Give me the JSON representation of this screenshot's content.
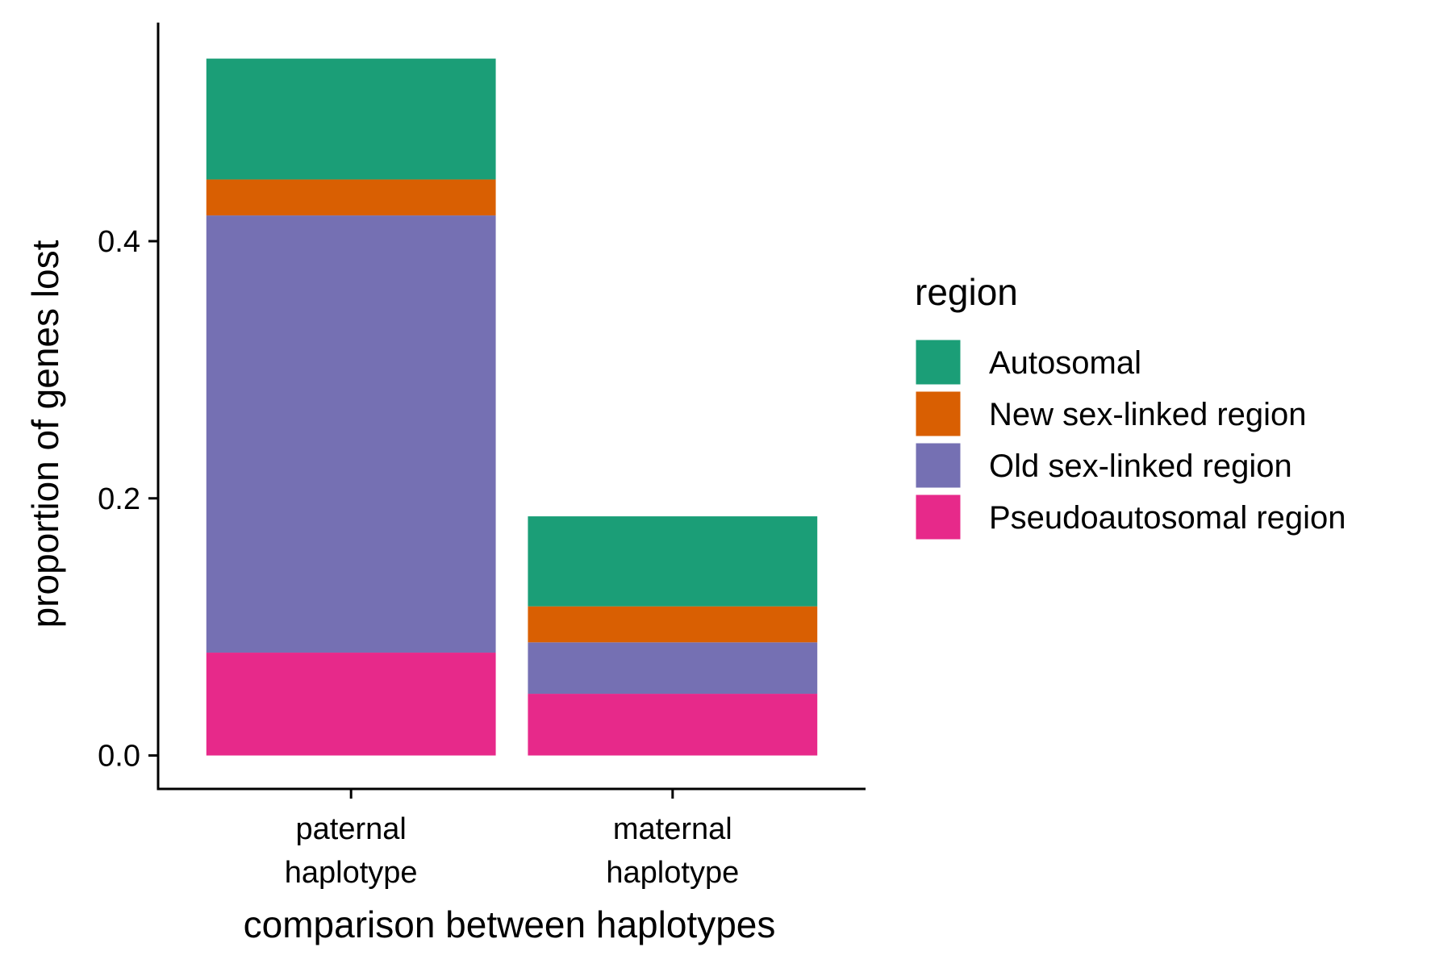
{
  "chart_data": {
    "type": "bar",
    "stacked": true,
    "categories": [
      [
        "paternal",
        "haplotype"
      ],
      [
        "maternal",
        "haplotype"
      ]
    ],
    "series": [
      {
        "name": "Pseudoautosomal region",
        "color": "#E7298A",
        "values": [
          0.08,
          0.048
        ]
      },
      {
        "name": "Old sex-linked region",
        "color": "#7570B3",
        "values": [
          0.34,
          0.04
        ]
      },
      {
        "name": "New sex-linked region",
        "color": "#D95F02",
        "values": [
          0.028,
          0.028
        ]
      },
      {
        "name": "Autosomal",
        "color": "#1B9E77",
        "values": [
          0.094,
          0.07
        ]
      }
    ],
    "xlabel": "comparison between haplotypes",
    "ylabel": "proportion of genes lost",
    "ylim": [
      -0.026,
      0.57
    ],
    "yticks": [
      0.0,
      0.2,
      0.4
    ],
    "ytick_labels": [
      "0.0",
      "0.2",
      "0.4"
    ],
    "legend_title": "region",
    "legend_order": [
      "Autosomal",
      "New sex-linked region",
      "Old sex-linked region",
      "Pseudoautosomal region"
    ],
    "legend_position": "right",
    "grid": false
  }
}
